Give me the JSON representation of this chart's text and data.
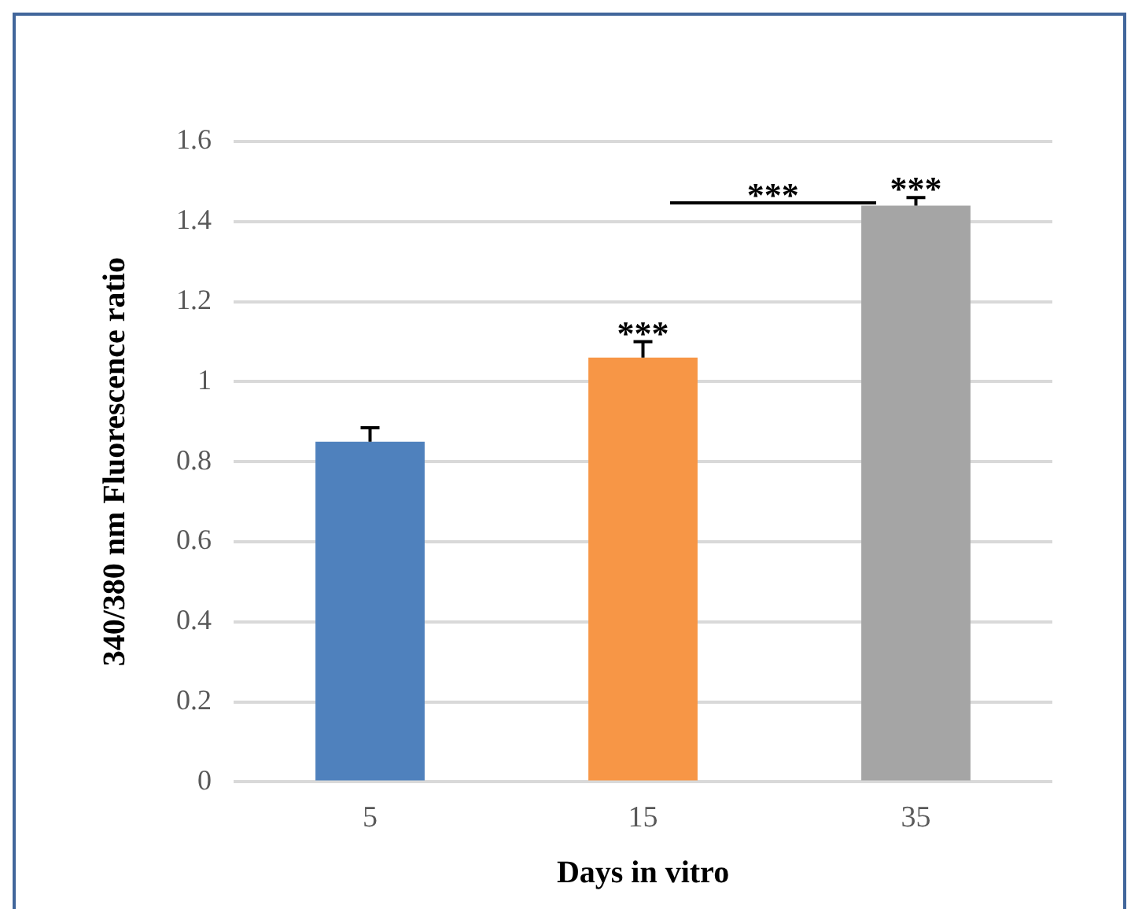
{
  "chart_data": {
    "type": "bar",
    "xlabel": "Days in vitro",
    "ylabel": "340/380 nm Fluorescence ratio",
    "categories": [
      "5",
      "15",
      "35"
    ],
    "values": [
      0.85,
      1.06,
      1.44
    ],
    "errors": [
      0.035,
      0.04,
      0.02
    ],
    "colors": [
      "#4f81bd",
      "#f79646",
      "#a5a5a5"
    ],
    "ylim": [
      0,
      1.6
    ],
    "yticks": [
      0,
      0.2,
      0.4,
      0.6,
      0.8,
      1,
      1.2,
      1.4,
      1.6
    ],
    "grid": "y",
    "legend": false,
    "annotations": [
      {
        "text": "***",
        "x": "15",
        "y": 1.1
      },
      {
        "text": "***",
        "x": "35",
        "y": 1.46
      },
      "***"
    ]
  }
}
